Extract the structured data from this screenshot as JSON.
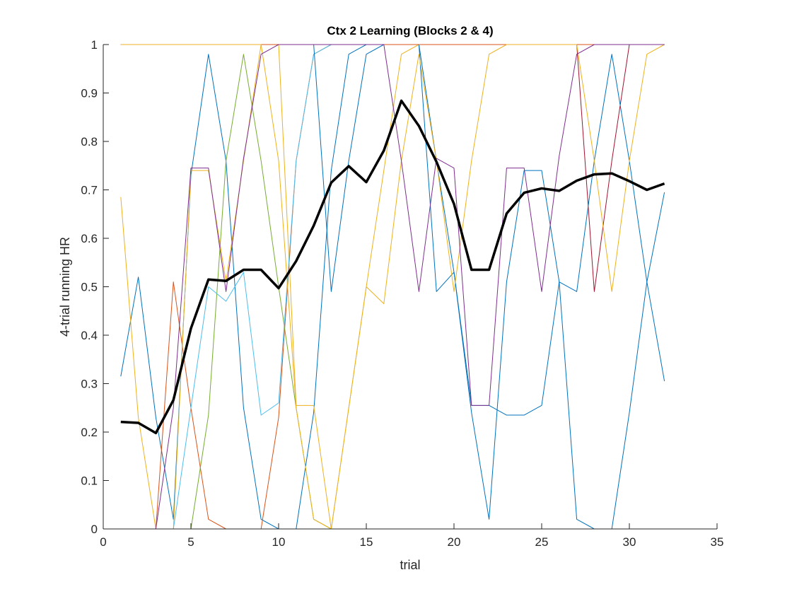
{
  "chart_data": {
    "type": "line",
    "title": "Ctx 2 Learning (Blocks 2 & 4)",
    "xlabel": "trial",
    "ylabel": "4-trial running HR",
    "xlim": [
      0,
      35
    ],
    "ylim": [
      0,
      1
    ],
    "xticks": [
      "0",
      "5",
      "10",
      "15",
      "20",
      "25",
      "30",
      "35"
    ],
    "yticks": [
      "0",
      "0.1",
      "0.2",
      "0.3",
      "0.4",
      "0.5",
      "0.6",
      "0.7",
      "0.8",
      "0.9",
      "1"
    ],
    "grid": false,
    "legend": "none",
    "x": [
      1,
      2,
      3,
      4,
      5,
      6,
      7,
      8,
      9,
      10,
      11,
      12,
      13,
      14,
      15,
      16,
      17,
      18,
      19,
      20,
      21,
      22,
      23,
      24,
      25,
      26,
      27,
      28,
      29,
      30,
      31,
      32
    ],
    "series": [
      {
        "color": "#0072BD",
        "values": [
          0.315,
          0.52,
          0.23,
          0.02,
          0.73,
          0.98,
          0.76,
          0.25,
          0.02,
          0,
          0,
          0.24,
          0.74,
          0.98,
          1,
          1,
          1,
          1,
          0.76,
          0.53,
          0.24,
          0.02,
          0.51,
          0.74,
          0.74,
          0.51,
          0.02,
          0,
          0,
          0.24,
          0.51,
          0.695
        ]
      },
      {
        "color": "#D95319",
        "values": [
          0,
          0,
          0,
          0.51,
          0.25,
          0.02,
          0,
          0,
          0,
          0.23,
          0.76,
          0.98,
          1,
          1,
          1,
          1,
          1,
          1,
          1,
          1,
          1,
          1,
          1,
          1,
          1,
          1,
          1,
          1,
          1,
          1,
          1,
          1
        ]
      },
      {
        "color": "#EDB120",
        "values": [
          0.685,
          0.23,
          0,
          0,
          0.74,
          0.74,
          0.51,
          0.76,
          1,
          1,
          0.255,
          0.255,
          0,
          0.25,
          0.5,
          0.74,
          0.98,
          1,
          1,
          1,
          1,
          1,
          1,
          1,
          1,
          1,
          1,
          1,
          1,
          1,
          1,
          1
        ]
      },
      {
        "color": "#7E2F8E",
        "values": [
          1,
          1,
          1,
          1,
          1,
          1,
          1,
          1,
          1,
          1,
          1,
          1,
          1,
          1,
          1,
          1,
          1,
          1,
          1,
          1,
          1,
          1,
          1,
          1,
          1,
          1,
          1,
          1,
          1,
          1,
          1,
          1
        ]
      },
      {
        "color": "#77AC30",
        "values": [
          0,
          0,
          0,
          0,
          0,
          0.235,
          0.76,
          0.98,
          0.76,
          0.5,
          0.25,
          0.02,
          0,
          0,
          0,
          0,
          0,
          0,
          0,
          0,
          0,
          0,
          0,
          0,
          0,
          0,
          0,
          0,
          0,
          0,
          0,
          0
        ]
      },
      {
        "color": "#4DBEEE",
        "values": [
          0,
          0,
          0,
          0,
          0.25,
          0.5,
          0.47,
          0.53,
          0.235,
          0.26,
          0.76,
          0.98,
          1,
          1,
          1,
          1,
          1,
          1,
          1,
          1,
          1,
          1,
          1,
          1,
          1,
          1,
          1,
          1,
          1,
          1,
          1,
          1
        ]
      },
      {
        "color": "#A2142F",
        "values": [
          1,
          1,
          1,
          1,
          1,
          1,
          1,
          1,
          1,
          1,
          1,
          1,
          1,
          1,
          1,
          1,
          1,
          1,
          1,
          1,
          1,
          1,
          1,
          1,
          1,
          1,
          1,
          0.49,
          0.76,
          1,
          1,
          1
        ]
      },
      {
        "color": "#0072BD",
        "values": [
          1,
          1,
          1,
          1,
          1,
          1,
          1,
          1,
          1,
          1,
          1,
          1,
          0.49,
          0.76,
          0.98,
          1,
          1,
          1,
          0.49,
          0.53,
          0.255,
          0.255,
          0.235,
          0.235,
          0.255,
          0.51,
          0.49,
          0.76,
          0.98,
          0.76,
          0.51,
          0.305
        ]
      },
      {
        "color": "#D95319",
        "values": [
          1,
          1,
          1,
          1,
          1,
          1,
          1,
          1,
          1,
          1,
          1,
          1,
          1,
          1,
          1,
          1,
          1,
          1,
          1,
          1,
          1,
          1,
          1,
          1,
          1,
          1,
          1,
          1,
          1,
          1,
          1,
          1
        ]
      },
      {
        "color": "#EDB120",
        "values": [
          1,
          1,
          1,
          1,
          1,
          1,
          1,
          1,
          1,
          0.76,
          0.25,
          0.02,
          0,
          0.25,
          0.5,
          0.465,
          0.76,
          0.98,
          0.76,
          0.49,
          0.76,
          0.98,
          1,
          1,
          1,
          1,
          1,
          0.76,
          0.49,
          0.76,
          0.98,
          1
        ]
      },
      {
        "color": "#7E2F8E",
        "values": [
          0,
          0,
          0,
          0.25,
          0.745,
          0.745,
          0.49,
          0.765,
          0.98,
          1,
          1,
          1,
          1,
          1,
          1,
          1,
          0.76,
          0.49,
          0.765,
          0.745,
          0.255,
          0.255,
          0.745,
          0.745,
          0.49,
          0.77,
          0.98,
          1,
          1,
          1,
          1,
          1
        ]
      },
      {
        "color": "#000000",
        "bold": true,
        "values": [
          0.221,
          0.219,
          0.198,
          0.266,
          0.414,
          0.515,
          0.512,
          0.535,
          0.535,
          0.497,
          0.553,
          0.626,
          0.715,
          0.749,
          0.716,
          0.781,
          0.884,
          0.832,
          0.758,
          0.671,
          0.535,
          0.535,
          0.651,
          0.694,
          0.703,
          0.698,
          0.719,
          0.732,
          0.734,
          0.718,
          0.7,
          0.713
        ]
      }
    ]
  }
}
